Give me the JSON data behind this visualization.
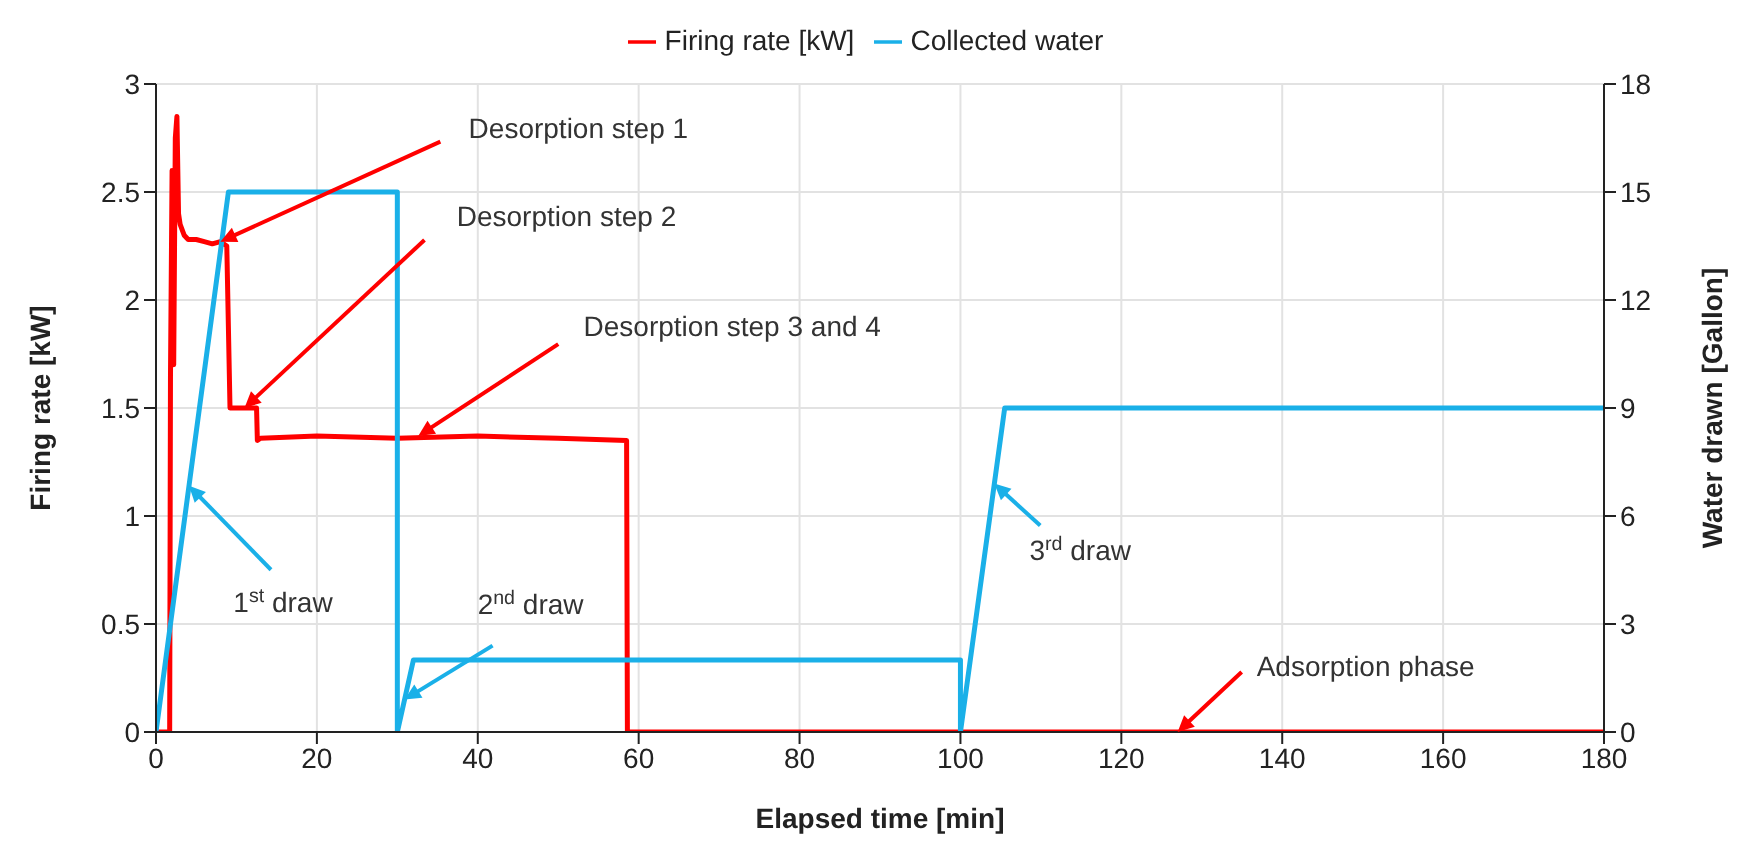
{
  "chart_data": {
    "type": "line",
    "xlabel": "Elapsed time [min]",
    "ylabel": "Firing rate [kW]",
    "y2label": "Water drawn [Gallon]",
    "xlim": [
      0,
      180
    ],
    "xticks": [
      0,
      20,
      40,
      60,
      80,
      100,
      120,
      140,
      160,
      180
    ],
    "ylim": [
      0,
      3
    ],
    "yticks": [
      0,
      0.5,
      1,
      1.5,
      2,
      2.5,
      3
    ],
    "y2lim": [
      0,
      18
    ],
    "y2ticks": [
      0,
      3,
      6,
      9,
      12,
      15,
      18
    ],
    "grid": true,
    "legend": "top",
    "series": [
      {
        "name": "Firing rate [kW]",
        "color": "#ff0000",
        "x": [
          0,
          1.7,
          1.8,
          2.0,
          2.2,
          2.4,
          2.6,
          2.8,
          3.0,
          3.5,
          4,
          5,
          6,
          7,
          8,
          8.8,
          9.2,
          12.5,
          12.6,
          13,
          20,
          30,
          40,
          50,
          58.5,
          58.6,
          180
        ],
        "values": [
          0,
          0,
          1.65,
          2.6,
          1.7,
          2.75,
          2.85,
          2.4,
          2.35,
          2.3,
          2.28,
          2.28,
          2.27,
          2.26,
          2.27,
          2.25,
          1.5,
          1.5,
          1.35,
          1.36,
          1.37,
          1.36,
          1.37,
          1.36,
          1.35,
          0,
          0
        ]
      },
      {
        "name": "Collected water",
        "color": "#1ab0e8",
        "axis": "y2",
        "x": [
          0,
          9,
          30,
          30,
          32,
          100,
          100,
          105.5,
          180
        ],
        "values": [
          0,
          15,
          15,
          0,
          2,
          2,
          0,
          9,
          9
        ]
      }
    ],
    "annotations": [
      {
        "text": "Desorption step 1",
        "x": 8,
        "y": 2.27
      },
      {
        "text": "Desorption step 2",
        "x": 11,
        "y": 1.5
      },
      {
        "text": "Desorption step 3 and 4",
        "x": 32.6,
        "y": 1.37
      },
      {
        "text": "1$^{st}$ draw",
        "x": 4.1,
        "y": 1.14
      },
      {
        "text": "2$^{nd}$ draw",
        "x": 30.9,
        "y": 0.15
      },
      {
        "text": "3$^{rd}$ draw",
        "x": 104.2,
        "y": 1.15
      },
      {
        "text": "Adsorption phase",
        "x": 127,
        "y": 0
      }
    ]
  }
}
